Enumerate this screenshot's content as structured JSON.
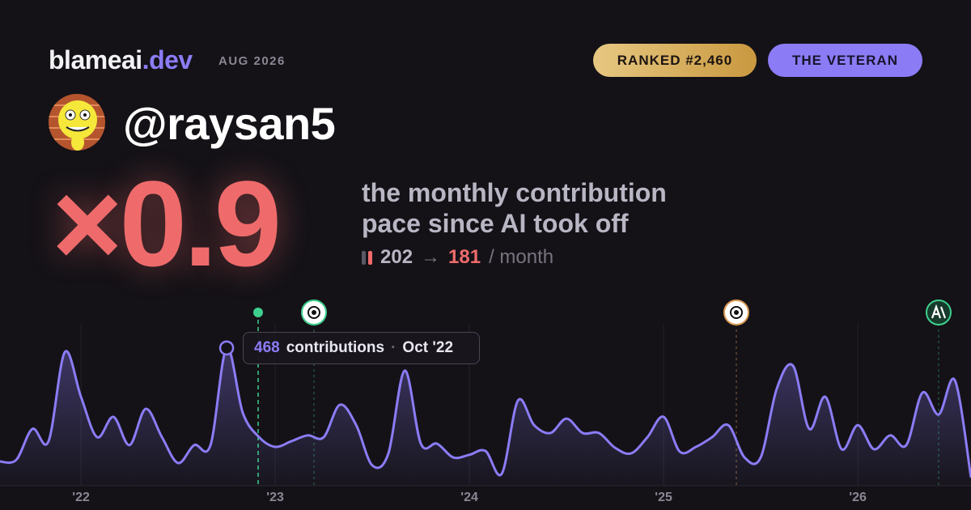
{
  "header": {
    "brand": "blameai",
    "brand_tld": ".dev",
    "date": "AUG 2026",
    "rank": "RANKED #2,460",
    "tier": "THE VETERAN"
  },
  "profile": {
    "handle": "@raysan5"
  },
  "headline": {
    "multiplier": "×0.9",
    "line1": "the monthly contribution",
    "line2": "pace since AI took off",
    "before": 202,
    "arrow": "→",
    "after": 181,
    "unit": "/ month"
  },
  "tooltip": {
    "unit": "contributions",
    "date": "Oct '22"
  },
  "chart_data": {
    "type": "line",
    "color": "#8b7cf6",
    "x": [
      2021.583,
      2021.667,
      2021.75,
      2021.833,
      2021.917,
      2022,
      2022.083,
      2022.167,
      2022.25,
      2022.333,
      2022.417,
      2022.5,
      2022.583,
      2022.667,
      2022.75,
      2022.833,
      2022.917,
      2023,
      2023.083,
      2023.167,
      2023.25,
      2023.333,
      2023.417,
      2023.5,
      2023.583,
      2023.667,
      2023.75,
      2023.833,
      2023.917,
      2024,
      2024.083,
      2024.167,
      2024.25,
      2024.333,
      2024.417,
      2024.5,
      2024.583,
      2024.667,
      2024.75,
      2024.833,
      2024.917,
      2025,
      2025.083,
      2025.167,
      2025.25,
      2025.333,
      2025.417,
      2025.5,
      2025.583,
      2025.667,
      2025.75,
      2025.833,
      2025.917,
      2026,
      2026.083,
      2026.167,
      2026.25,
      2026.333,
      2026.417,
      2026.5,
      2026.583
    ],
    "values": [
      82,
      88,
      193,
      151,
      454,
      302,
      165,
      234,
      138,
      261,
      165,
      77,
      138,
      138,
      468,
      248,
      165,
      132,
      151,
      171,
      165,
      275,
      206,
      69,
      110,
      391,
      143,
      143,
      96,
      105,
      118,
      41,
      289,
      206,
      179,
      228,
      179,
      179,
      129,
      110,
      165,
      234,
      116,
      132,
      165,
      206,
      96,
      96,
      330,
      407,
      193,
      302,
      124,
      206,
      124,
      171,
      138,
      316,
      242,
      358,
      28
    ],
    "xlim": [
      2021.583,
      2026.583
    ],
    "xticks": [
      {
        "value": 2022,
        "label": "'22"
      },
      {
        "value": 2023,
        "label": "'23"
      },
      {
        "value": 2024,
        "label": "'24"
      },
      {
        "value": 2025,
        "label": "'25"
      },
      {
        "value": 2026,
        "label": "'26"
      }
    ],
    "ylim": [
      0,
      550
    ]
  }
}
